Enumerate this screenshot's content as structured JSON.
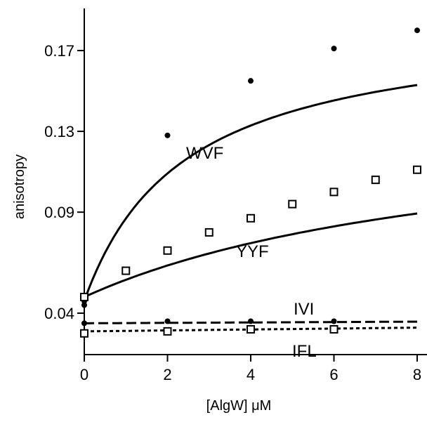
{
  "chart_data": {
    "type": "line",
    "title": "",
    "xlabel": "[AlgW] μM",
    "ylabel": "anisotropy",
    "xlim": [
      0,
      8
    ],
    "ylim": [
      0.0,
      0.19
    ],
    "xticks": [
      0,
      2,
      4,
      6,
      8
    ],
    "yticks": [
      0.04,
      0.09,
      0.13,
      0.17
    ],
    "ytick_labels": [
      "0.04",
      "0.09",
      "0.13",
      "0.17"
    ],
    "xtick_labels": [
      "0",
      "2",
      "4",
      "6",
      "8"
    ],
    "grid": false,
    "series": [
      {
        "name": "WVF",
        "marker": "filled-circle",
        "line": "solid",
        "color": "#000000",
        "x": [
          0,
          0,
          2,
          4,
          6,
          8
        ],
        "y": [
          0.046,
          0.044,
          0.128,
          0.155,
          0.171,
          0.18
        ],
        "fit": {
          "model": "hyperbolic",
          "a": 0.046,
          "b": 0.185,
          "c": 2.4
        }
      },
      {
        "name": "YYF",
        "marker": "open-square",
        "line": "solid",
        "color": "#000000",
        "x": [
          0,
          1,
          2,
          3,
          4,
          5,
          6,
          7,
          8
        ],
        "y": [
          0.048,
          0.061,
          0.071,
          0.08,
          0.087,
          0.094,
          0.1,
          0.106,
          0.111
        ],
        "fit": {
          "model": "hyperbolic",
          "a": 0.048,
          "b": 0.14,
          "c": 9.8
        }
      },
      {
        "name": "IVI",
        "marker": "filled-circle",
        "line": "dashed",
        "color": "#000000",
        "x": [
          0,
          2,
          4,
          6
        ],
        "y": [
          0.035,
          0.036,
          0.036,
          0.036
        ],
        "fit": {
          "model": "linear",
          "y0": 0.035,
          "slope": 0.0001
        }
      },
      {
        "name": "IFL",
        "marker": "open-square",
        "line": "dotted",
        "color": "#000000",
        "x": [
          0,
          2,
          4,
          6
        ],
        "y": [
          0.03,
          0.031,
          0.032,
          0.032
        ],
        "fit": {
          "model": "linear",
          "y0": 0.031,
          "slope": 0.00023
        }
      }
    ]
  }
}
